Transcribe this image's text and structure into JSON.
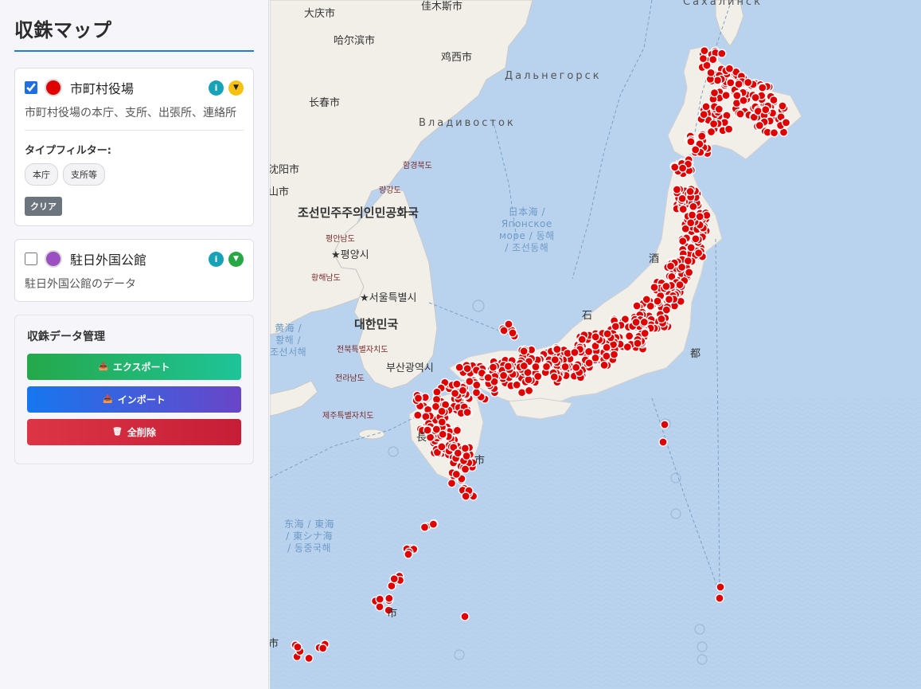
{
  "sidebar": {
    "title": "収銖マップ",
    "layers": [
      {
        "name": "市町村役場",
        "checked": true,
        "color": "#e00000",
        "info_label": "i",
        "toggle_label": "▼",
        "description": "市町村役場の本庁、支所、出張所、連絡所",
        "filter_label": "タイプフィルター:",
        "filters": [
          "本庁",
          "支所等"
        ],
        "clear_label": "クリア"
      },
      {
        "name": "駐日外国公館",
        "checked": false,
        "color": "#9b4fc0",
        "info_label": "i",
        "toggle_label": "▼",
        "description": "駐日外国公館のデータ"
      }
    ],
    "management": {
      "title": "収銖データ管理",
      "export_label": "エクスポート",
      "import_label": "インポート",
      "delete_label": "全削除",
      "export_icon": "📤",
      "import_icon": "📥",
      "delete_icon": "🗑"
    }
  },
  "map": {
    "labels": {
      "daqing": "大庆市",
      "jiamusi": "佳木斯市",
      "sakhalin": "Сахалинск",
      "harbin": "哈尔滨市",
      "jixi": "鸡西市",
      "dalnegorsk": "Дальнегорск",
      "changchun": "长春市",
      "vladivostok": "Владивосток",
      "hamgyong": "함경북도",
      "shenyang": "沈阳市",
      "yanggang": "량강도",
      "shan": "山市",
      "dprk": "조선민주주의인민공화국",
      "japan_sea": "日本海 /\nЯпонское\nморе / 동해\n/ 조선동해",
      "pyongan": "평안남도",
      "pyongyang": "★평양시",
      "hwanghae": "황해남도",
      "seoul": "★서울특별시",
      "yellow_sea": "黄海 /\n황해 /\n조선서해",
      "rok": "대한민국",
      "jeonbuk": "전북특별자치도",
      "busan": "부산광역시",
      "jeonnam": "전라남도",
      "jeju": "제주특별자치도",
      "east_china_sea": "东海 / 東海\n/ 東シナ海\n/ 동중국해",
      "sakata": "酒",
      "to": "都",
      "ishi": "石",
      "naga": "長",
      "shi1": "市",
      "shi2": "市",
      "shi3": "市"
    }
  }
}
